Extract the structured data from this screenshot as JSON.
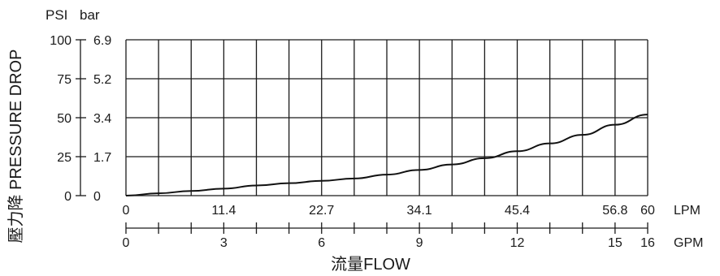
{
  "chart_data": {
    "type": "line",
    "title": "",
    "y_unit_psi": "PSI",
    "y_unit_bar": "bar",
    "y_axis_title": "壓力降 PRESSURE DROP",
    "x_axis_title": "流量FLOW",
    "x_unit_lpm": "LPM",
    "x_unit_gpm": "GPM",
    "xlim_lpm": [
      0,
      60
    ],
    "ylim_psi": [
      0,
      100
    ],
    "grid": true,
    "psi_ticks": [
      {
        "value": 0,
        "label": "0"
      },
      {
        "value": 25,
        "label": "25"
      },
      {
        "value": 50,
        "label": "50"
      },
      {
        "value": 75,
        "label": "75"
      },
      {
        "value": 100,
        "label": "100"
      }
    ],
    "bar_ticks": [
      {
        "value": 0,
        "label": "0"
      },
      {
        "value": 25,
        "label": "1.7"
      },
      {
        "value": 50,
        "label": "3.4"
      },
      {
        "value": 75,
        "label": "5.2"
      },
      {
        "value": 100,
        "label": "6.9"
      }
    ],
    "lpm_gridlines": [
      0,
      3.75,
      7.5,
      11.25,
      15,
      18.75,
      22.5,
      26.25,
      30,
      33.75,
      37.5,
      41.25,
      45,
      48.75,
      52.5,
      56.25,
      60
    ],
    "lpm_labels": [
      {
        "value": 0,
        "label": "0"
      },
      {
        "value": 11.25,
        "label": "11.4"
      },
      {
        "value": 22.5,
        "label": "22.7"
      },
      {
        "value": 33.75,
        "label": "34.1"
      },
      {
        "value": 45,
        "label": "45.4"
      },
      {
        "value": 56.25,
        "label": "56.8"
      },
      {
        "value": 60,
        "label": "60"
      }
    ],
    "gpm_ticks": [
      0,
      1,
      2,
      3,
      4,
      5,
      6,
      7,
      8,
      9,
      10,
      11,
      12,
      13,
      14,
      15,
      16
    ],
    "gpm_labels": [
      {
        "value": 0,
        "label": "0"
      },
      {
        "value": 3,
        "label": "3"
      },
      {
        "value": 6,
        "label": "6"
      },
      {
        "value": 9,
        "label": "9"
      },
      {
        "value": 12,
        "label": "12"
      },
      {
        "value": 15,
        "label": "15"
      },
      {
        "value": 16,
        "label": "16"
      }
    ],
    "series": [
      {
        "x_lpm": [
          0,
          3.75,
          7.5,
          11.25,
          15,
          18.75,
          22.5,
          26.25,
          30,
          33.75,
          37.5,
          41.25,
          45,
          48.75,
          52.5,
          56.25,
          60
        ],
        "y_psi": [
          0,
          1.5,
          3,
          4.5,
          6.5,
          8,
          9.5,
          11,
          13.5,
          16.5,
          20,
          24,
          28.5,
          33.5,
          39,
          45.5,
          52
        ]
      }
    ]
  }
}
